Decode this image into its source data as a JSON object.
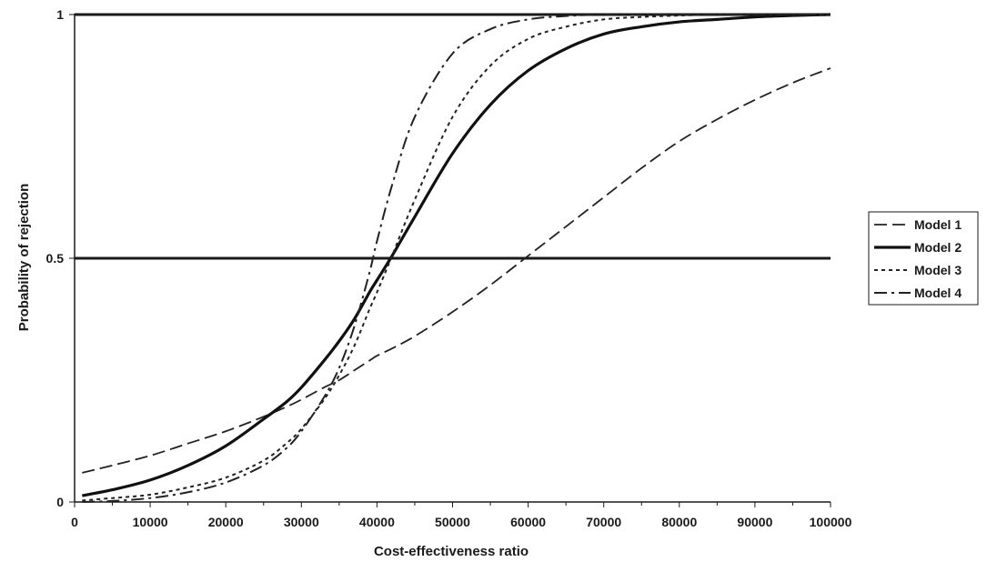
{
  "chart_data": {
    "type": "line",
    "title": "",
    "xlabel": "Cost-effectiveness ratio",
    "ylabel": "Probability of rejection",
    "xlim": [
      0,
      100000
    ],
    "ylim": [
      0,
      1
    ],
    "x_ticks": [
      0,
      10000,
      20000,
      30000,
      40000,
      50000,
      60000,
      70000,
      80000,
      90000,
      100000
    ],
    "x_tick_labels": [
      "0",
      "10000",
      "20000",
      "30000",
      "40000",
      "50000",
      "60000",
      "70000",
      "80000",
      "90000",
      "100000"
    ],
    "y_ticks": [
      0,
      0.5,
      1
    ],
    "y_tick_labels": [
      "0",
      "0.5",
      "1"
    ],
    "grid": "horizontal lines at 0.5 and 1",
    "legend_position": "right",
    "x": [
      1000,
      5000,
      10000,
      15000,
      20000,
      25000,
      28000,
      30000,
      33000,
      35000,
      37000,
      39000,
      40000,
      42000,
      45000,
      50000,
      55000,
      60000,
      65000,
      70000,
      75000,
      80000,
      85000,
      90000,
      95000,
      100000
    ],
    "series": [
      {
        "name": "Model 1",
        "style": "long-dash",
        "color": "#222222",
        "values": [
          0.06,
          0.075,
          0.095,
          0.12,
          0.145,
          0.175,
          0.195,
          0.21,
          0.235,
          0.25,
          0.27,
          0.29,
          0.3,
          0.315,
          0.34,
          0.39,
          0.445,
          0.505,
          0.565,
          0.625,
          0.685,
          0.74,
          0.785,
          0.825,
          0.86,
          0.89
        ]
      },
      {
        "name": "Model 2",
        "style": "solid-thick",
        "color": "#111111",
        "values": [
          0.013,
          0.025,
          0.045,
          0.075,
          0.115,
          0.17,
          0.205,
          0.235,
          0.29,
          0.33,
          0.375,
          0.43,
          0.455,
          0.505,
          0.585,
          0.715,
          0.815,
          0.885,
          0.93,
          0.96,
          0.975,
          0.985,
          0.99,
          0.995,
          0.998,
          1.0
        ]
      },
      {
        "name": "Model 3",
        "style": "short-dot",
        "color": "#222222",
        "values": [
          0.003,
          0.008,
          0.015,
          0.03,
          0.05,
          0.085,
          0.12,
          0.15,
          0.21,
          0.26,
          0.32,
          0.395,
          0.43,
          0.505,
          0.62,
          0.79,
          0.895,
          0.95,
          0.975,
          0.99,
          0.995,
          0.998,
          1.0,
          1.0,
          1.0,
          1.0
        ]
      },
      {
        "name": "Model 4",
        "style": "dash-dot",
        "color": "#222222",
        "values": [
          0.0,
          0.002,
          0.008,
          0.02,
          0.04,
          0.075,
          0.11,
          0.145,
          0.215,
          0.275,
          0.36,
          0.47,
          0.535,
          0.65,
          0.79,
          0.92,
          0.97,
          0.99,
          0.997,
          1.0,
          1.0,
          1.0,
          1.0,
          1.0,
          1.0,
          1.0
        ]
      }
    ]
  }
}
